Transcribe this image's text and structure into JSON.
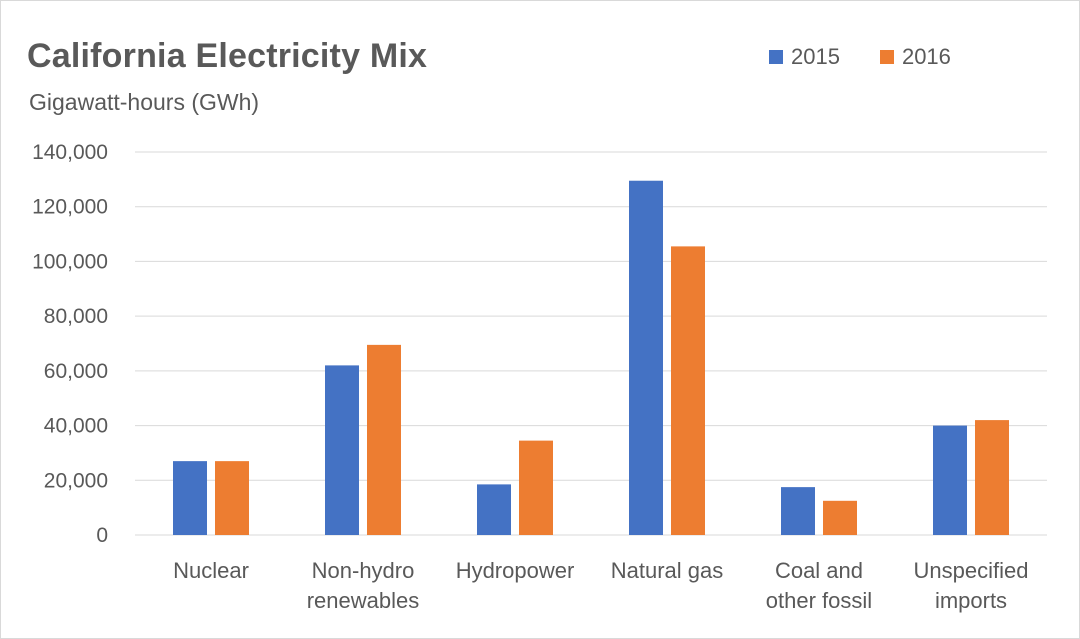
{
  "chart_data": {
    "type": "bar",
    "title": "California Electricity Mix",
    "subtitle": "Gigawatt-hours (GWh)",
    "categories": [
      [
        "Nuclear"
      ],
      [
        "Non-hydro",
        "renewables"
      ],
      [
        "Hydropower"
      ],
      [
        "Natural gas"
      ],
      [
        "Coal and",
        "other fossil"
      ],
      [
        "Unspecified",
        "imports"
      ]
    ],
    "series": [
      {
        "name": "2015",
        "color": "#4472c4",
        "values": [
          27000,
          62000,
          18500,
          129500,
          17500,
          40000
        ]
      },
      {
        "name": "2016",
        "color": "#ed7d31",
        "values": [
          27000,
          69500,
          34500,
          105500,
          12500,
          42000
        ]
      }
    ],
    "yticks": [
      "0",
      "20,000",
      "40,000",
      "60,000",
      "80,000",
      "100,000",
      "120,000",
      "140,000"
    ],
    "ylim": [
      0,
      140000
    ],
    "grid": true,
    "legend_position": "top-right"
  }
}
